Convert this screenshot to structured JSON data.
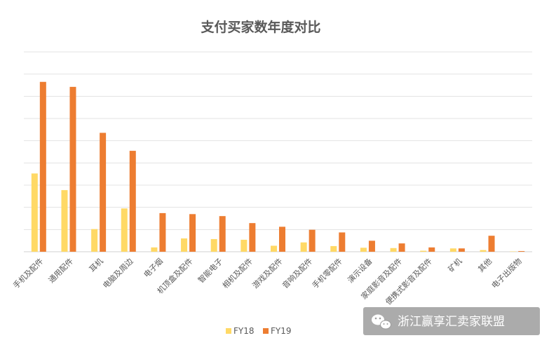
{
  "chart_data": {
    "type": "bar",
    "title": "支付买家数年度对比",
    "categories": [
      "手机及配件",
      "通用配件",
      "耳机",
      "电脑及周边",
      "电子烟",
      "机顶盒及配件",
      "智能电子",
      "相机及配件",
      "游戏及配件",
      "音响及配件",
      "手机零配件",
      "演示设备",
      "家庭影音及配件",
      "便携式影音及配件",
      "矿机",
      "其他",
      "电子出版物"
    ],
    "series": [
      {
        "name": "FY18",
        "color": "#FFD966",
        "values": [
          2.35,
          1.85,
          0.68,
          1.3,
          0.13,
          0.4,
          0.38,
          0.36,
          0.18,
          0.28,
          0.17,
          0.12,
          0.11,
          0.03,
          0.1,
          0.05,
          0.01
        ]
      },
      {
        "name": "FY19",
        "color": "#ED7D31",
        "values": [
          5.1,
          4.95,
          3.57,
          3.03,
          1.16,
          1.13,
          1.07,
          0.86,
          0.75,
          0.66,
          0.58,
          0.33,
          0.25,
          0.13,
          0.1,
          0.48,
          0.02
        ]
      }
    ],
    "ylim": [
      0,
      6
    ],
    "grid": true,
    "legend": "bottom",
    "y_tick_labels_shown": false
  },
  "watermark": {
    "text": "浙江赢享汇卖家联盟",
    "icon": "wechat-icon"
  }
}
